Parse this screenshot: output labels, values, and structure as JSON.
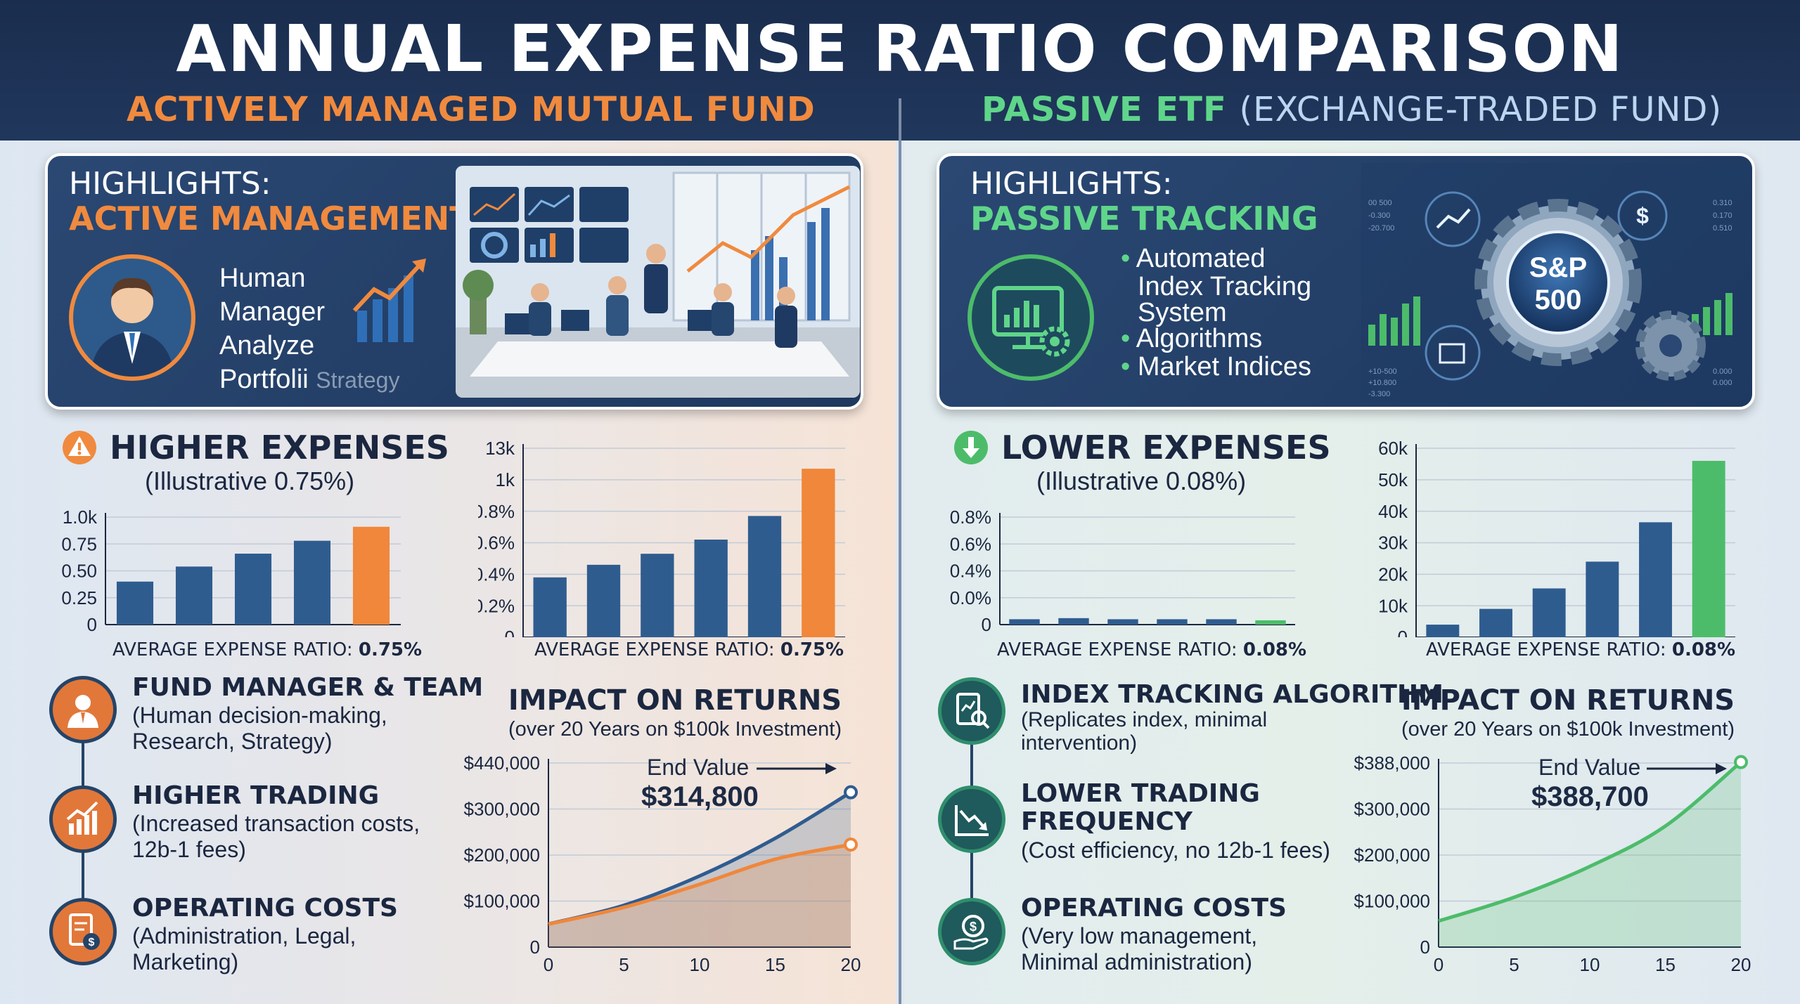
{
  "title": "ANNUAL EXPENSE RATIO COMPARISON",
  "left": {
    "heading": "ACTIVELY MANAGED MUTUAL FUND",
    "highlight": {
      "kicker": "HIGHLIGHTS:",
      "name": "ACTIVE MANAGEMENT",
      "lines": [
        "Human",
        "Manager",
        "Analyze",
        "Portfolii"
      ],
      "faded": "Strategy"
    },
    "expenses": {
      "title": "HIGHER EXPENSES",
      "subtitle": "(Illustrative 0.75%)",
      "ratio_label": "AVERAGE EXPENSE RATIO:",
      "ratio_value": "0.75%"
    },
    "features": [
      {
        "title": "FUND MANAGER & TEAM",
        "desc": [
          "(Human decision-making,",
          "Research, Strategy)"
        ],
        "icon": "manager-icon"
      },
      {
        "title": "HIGHER TRADING",
        "desc": [
          "(Increased transaction costs,",
          "12b-1 fees)"
        ],
        "icon": "trading-chart-icon"
      },
      {
        "title": "OPERATING COSTS",
        "desc": [
          "(Administration, Legal,",
          "Marketing)"
        ],
        "icon": "document-dollar-icon"
      }
    ],
    "impact": {
      "title": "IMPACT ON RETURNS",
      "subtitle": "(over 20 Years on $100k Investment)",
      "end_label": "End Value",
      "end_value": "$314,800"
    }
  },
  "right": {
    "heading": "PASSIVE ETF",
    "heading_paren": "(EXCHANGE-TRADED FUND)",
    "highlight": {
      "kicker": "HIGHLIGHTS:",
      "name": "PASSIVE TRACKING",
      "bullets": [
        "Automated",
        "Index Tracking",
        "System",
        "Algorithms",
        "Market Indices"
      ],
      "badge": [
        "S&P",
        "500"
      ]
    },
    "expenses": {
      "title": "LOWER EXPENSES",
      "subtitle": "(Illustrative 0.08%)",
      "ratio_label": "AVERAGE EXPENSE RATIO:",
      "ratio_value": "0.08%"
    },
    "features": [
      {
        "title": "INDEX TRACKING ALGORITHM",
        "desc": [
          "(Replicates index, minimal",
          "intervention)"
        ],
        "icon": "search-document-icon"
      },
      {
        "title": "LOWER TRADING",
        "title2": "FREQUENCY",
        "desc": [
          "(Cost efficiency, no 12b-1 fees)"
        ],
        "icon": "down-trend-icon"
      },
      {
        "title": "OPERATING COSTS",
        "desc": [
          "(Very low management,",
          "Minimal administration)"
        ],
        "icon": "hand-dollar-icon"
      }
    ],
    "impact": {
      "title": "IMPACT ON RETURNS",
      "subtitle": "(over 20 Years on $100k Investment)",
      "end_label": "End Value",
      "end_value": "$388,700"
    }
  },
  "colors": {
    "orange": "#f0873a",
    "blue": "#2f5c8f",
    "green": "#4cbc6a",
    "navy": "#1a2d4e"
  },
  "chart_data": [
    {
      "id": "left-bar-1",
      "type": "bar",
      "yticks": [
        "0",
        "0.25",
        "0.50",
        "0.75",
        "1.0k"
      ],
      "ylim": [
        0,
        1.0
      ],
      "values": [
        0.4,
        0.54,
        0.66,
        0.78,
        0.91
      ],
      "highlight_last": true
    },
    {
      "id": "left-bar-2",
      "type": "bar",
      "yticks": [
        "0",
        "0.2%",
        "0.4%",
        "0.6%",
        "0.8%",
        "1k",
        "13k"
      ],
      "ylim": [
        0,
        1.2
      ],
      "values": [
        0.38,
        0.46,
        0.53,
        0.62,
        0.77,
        1.07
      ],
      "highlight_last": true
    },
    {
      "id": "right-bar-1",
      "type": "bar",
      "yticks": [
        "0",
        "0.0%",
        "0.4%",
        "0.6%",
        "0.8%"
      ],
      "ylim": [
        0,
        1.0
      ],
      "values": [
        0.05,
        0.06,
        0.05,
        0.05,
        0.05,
        0.04
      ],
      "highlight_last": true
    },
    {
      "id": "right-bar-2",
      "type": "bar",
      "yticks": [
        "0",
        "10k",
        "20k",
        "30k",
        "40k",
        "50k",
        "60k"
      ],
      "ylim": [
        0,
        60000
      ],
      "values": [
        4000,
        9000,
        15500,
        24000,
        36500,
        56000
      ],
      "highlight_last": true
    },
    {
      "id": "left-line",
      "type": "line",
      "x_ticks": [
        "0",
        "5",
        "10",
        "15",
        "20"
      ],
      "y_ticks": [
        "0",
        "$100,000",
        "$200,000",
        "$300,000",
        "$440,000"
      ],
      "series": [
        {
          "points": [
            [
              0,
              55000
            ],
            [
              5,
              100000
            ],
            [
              10,
              170000
            ],
            [
              15,
              260000
            ],
            [
              20,
              370000
            ]
          ]
        },
        {
          "points": [
            [
              0,
              55000
            ],
            [
              5,
              95000
            ],
            [
              10,
              150000
            ],
            [
              15,
              210000
            ],
            [
              20,
              245000
            ]
          ]
        }
      ]
    },
    {
      "id": "right-line",
      "type": "line",
      "x_ticks": [
        "0",
        "5",
        "10",
        "15",
        "20"
      ],
      "y_ticks": [
        "0",
        "$100,000",
        "$200,000",
        "$300,000",
        "$388,000"
      ],
      "series": [
        {
          "points": [
            [
              0,
              55000
            ],
            [
              5,
              105000
            ],
            [
              10,
              170000
            ],
            [
              15,
              255000
            ],
            [
              20,
              390000
            ]
          ]
        }
      ]
    }
  ]
}
